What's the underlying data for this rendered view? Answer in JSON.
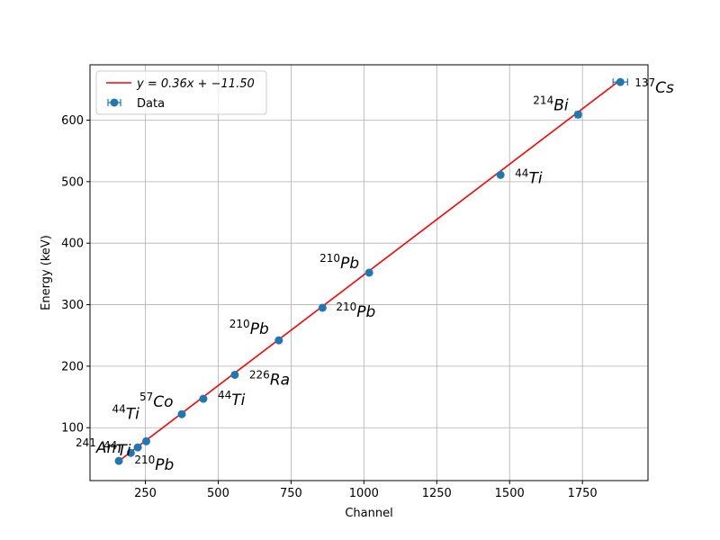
{
  "chart_data": {
    "type": "scatter",
    "xlabel": "Channel",
    "ylabel": "Energy (keV)",
    "xlim": [
      60,
      1975
    ],
    "ylim": [
      14,
      690
    ],
    "xticks": [
      250,
      500,
      750,
      1000,
      1250,
      1500,
      1750
    ],
    "yticks": [
      100,
      200,
      300,
      400,
      500,
      600
    ],
    "grid": true,
    "legend_position": "top-left",
    "colors": {
      "data": "#1f77b4",
      "fit": "#ff0000"
    },
    "fit": {
      "label": "y = 0.36x + −11.50",
      "slope": 0.36,
      "intercept": -11.5,
      "x_range": [
        160,
        1880
      ]
    },
    "series": [
      {
        "name": "Data",
        "points": [
          {
            "x": 159,
            "y": 46,
            "xerr": 2
          },
          {
            "x": 200,
            "y": 59,
            "xerr": 2
          },
          {
            "x": 224,
            "y": 68,
            "xerr": 2
          },
          {
            "x": 253,
            "y": 78,
            "xerr": 2
          },
          {
            "x": 375,
            "y": 122,
            "xerr": 2
          },
          {
            "x": 449,
            "y": 147,
            "xerr": 2
          },
          {
            "x": 557,
            "y": 186,
            "xerr": 2
          },
          {
            "x": 708,
            "y": 242,
            "xerr": 2
          },
          {
            "x": 858,
            "y": 295,
            "xerr": 2
          },
          {
            "x": 1018,
            "y": 352,
            "xerr": 3
          },
          {
            "x": 1469,
            "y": 511,
            "xerr": 3
          },
          {
            "x": 1735,
            "y": 609,
            "xerr": 9
          },
          {
            "x": 1880,
            "y": 662,
            "xerr": 25
          }
        ]
      }
    ],
    "annotations": [
      {
        "mass": "241",
        "element": "Am",
        "x": 0,
        "y": 46
      },
      {
        "mass": "210",
        "element": "Pb",
        "x": 200,
        "y": 59
      },
      {
        "mass": "44",
        "element": "Ti",
        "x": 253,
        "y": 78
      },
      {
        "mass": "44",
        "element": "Ti",
        "x": 224,
        "y": 68
      },
      {
        "mass": "57",
        "element": "Co",
        "x": 375,
        "y": 122
      },
      {
        "mass": "44",
        "element": "Ti",
        "x": 449,
        "y": 147
      },
      {
        "mass": "226",
        "element": "Ra",
        "x": 557,
        "y": 186
      },
      {
        "mass": "210",
        "element": "Pb",
        "x": 708,
        "y": 242
      },
      {
        "mass": "210",
        "element": "Pb",
        "x": 858,
        "y": 295
      },
      {
        "mass": "210",
        "element": "Pb",
        "x": 1018,
        "y": 352
      },
      {
        "mass": "44",
        "element": "Ti",
        "x": 1469,
        "y": 511
      },
      {
        "mass": "214",
        "element": "Bi",
        "x": 1735,
        "y": 609
      },
      {
        "mass": "137",
        "element": "Cs",
        "x": 1880,
        "y": 662
      }
    ]
  },
  "legend": {
    "fit_label": "y = 0.36x + −11.50",
    "data_label": "Data"
  }
}
